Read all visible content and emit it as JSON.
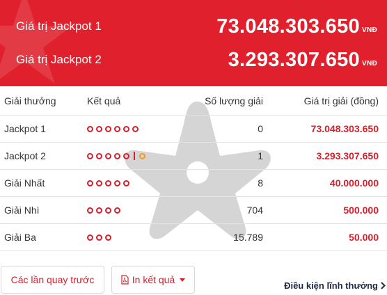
{
  "banner": {
    "rows": [
      {
        "label": "Giá trị Jackpot 1",
        "value": "73.048.303.650",
        "unit": "VNĐ"
      },
      {
        "label": "Giá trị Jackpot 2",
        "value": "3.293.307.650",
        "unit": "VNĐ"
      }
    ]
  },
  "table": {
    "headers": {
      "prize": "Giải thưởng",
      "result": "Kết quả",
      "count": "Số lượng giải",
      "value": "Giá trị giải (đồng)"
    },
    "rows": [
      {
        "name": "Jackpot 1",
        "balls": 6,
        "extra_ball": false,
        "count": "0",
        "value": "73.048.303.650"
      },
      {
        "name": "Jackpot 2",
        "balls": 5,
        "extra_ball": true,
        "count": "1",
        "value": "3.293.307.650"
      },
      {
        "name": "Giải Nhất",
        "balls": 5,
        "extra_ball": false,
        "count": "8",
        "value": "40.000.000"
      },
      {
        "name": "Giải Nhì",
        "balls": 4,
        "extra_ball": false,
        "count": "704",
        "value": "500.000"
      },
      {
        "name": "Giải Ba",
        "balls": 3,
        "extra_ball": false,
        "count": "15.789",
        "value": "50.000"
      }
    ]
  },
  "actions": {
    "history_label": "Các lần quay trước",
    "print_label": "In kết quả",
    "terms_label": "Điều kiện lĩnh thưởng"
  },
  "colors": {
    "brand_red": "#e0202c",
    "ball_red": "#d6202c",
    "ball_orange": "#f39a1e"
  },
  "icons": {
    "print": "pdf-icon",
    "print_dropdown": "caret-down-icon",
    "terms": "chevron-right-icon"
  }
}
